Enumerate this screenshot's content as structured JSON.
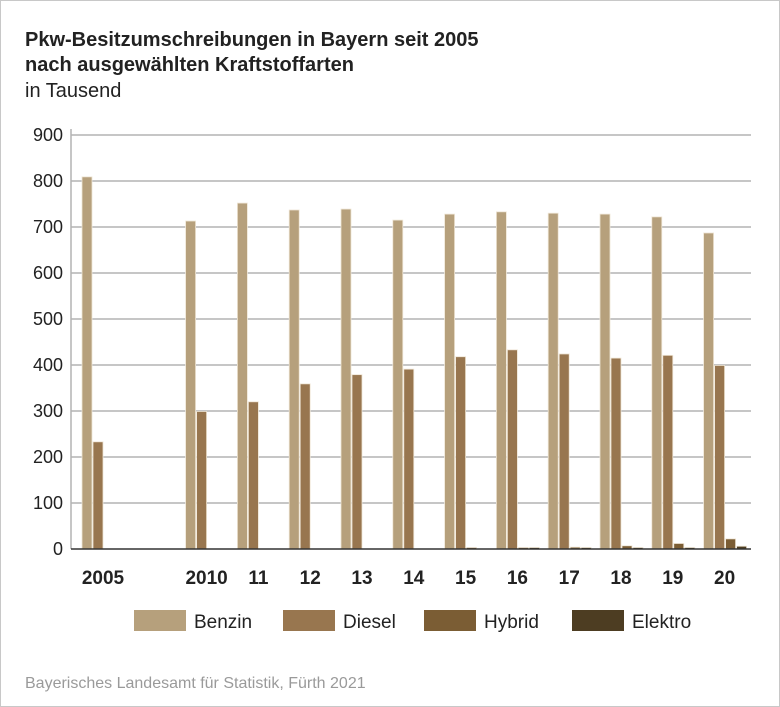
{
  "chart_data": {
    "type": "bar",
    "title": "Pkw-Besitzumschreibungen in Bayern seit 2005",
    "subtitle": "nach ausgewählten Kraftstoffarten",
    "unit": "in Tausend",
    "ylim": [
      0,
      900
    ],
    "yticks": [
      0,
      100,
      200,
      300,
      400,
      500,
      600,
      700,
      800,
      900
    ],
    "grid": true,
    "legend": "bottom",
    "categories": [
      "2005",
      "2010",
      "11",
      "12",
      "13",
      "14",
      "15",
      "16",
      "17",
      "18",
      "19",
      "20"
    ],
    "series": [
      {
        "name": "Benzin",
        "color": "#b6a07c",
        "values": [
          809,
          713,
          752,
          737,
          739,
          715,
          728,
          733,
          730,
          728,
          722,
          687
        ]
      },
      {
        "name": "Diesel",
        "color": "#98764f",
        "values": [
          233,
          299,
          320,
          359,
          379,
          391,
          418,
          433,
          424,
          415,
          421,
          399
        ]
      },
      {
        "name": "Hybrid",
        "color": "#7b5d34",
        "values": [
          0,
          0,
          0,
          0,
          0,
          0,
          1,
          2,
          4,
          7,
          12,
          22
        ]
      },
      {
        "name": "Elektro",
        "color": "#4d3d22",
        "values": [
          0,
          0,
          0,
          0,
          0,
          0,
          0,
          1,
          1,
          2,
          3,
          6
        ]
      }
    ]
  },
  "source": "Bayerisches Landesamt für Statistik, Fürth 2021"
}
